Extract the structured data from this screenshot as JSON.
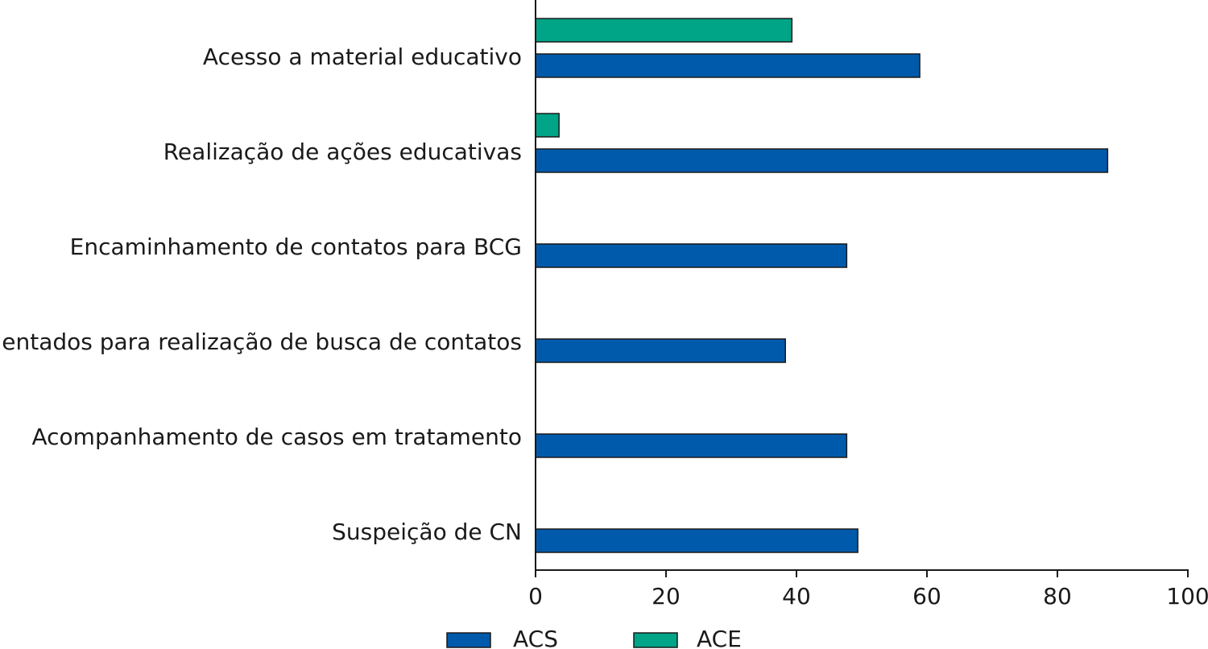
{
  "chart_data": {
    "type": "bar",
    "orientation": "horizontal",
    "categories": [
      "Acesso a material educativo",
      "Realização de ações educativas",
      "Encaminhamento de contatos para BCG",
      "Orientados para realização de busca de contatos",
      "Acompanhamento de casos em tratamento",
      "Suspeição de CN"
    ],
    "series": [
      {
        "name": "ACE",
        "color": "#00a486",
        "values": [
          39.3,
          3.6,
          0,
          0,
          0,
          0
        ]
      },
      {
        "name": "ACS",
        "color": "#005aab",
        "values": [
          58.9,
          87.7,
          47.7,
          38.3,
          47.7,
          49.4
        ]
      }
    ],
    "xlim": [
      0,
      100
    ],
    "xticks": [
      0,
      20,
      40,
      60,
      80,
      100
    ],
    "title": "",
    "xlabel": "",
    "ylabel": "",
    "grid": false,
    "legend": {
      "placement": "bottom",
      "order": [
        "ACS",
        "ACE"
      ]
    }
  }
}
